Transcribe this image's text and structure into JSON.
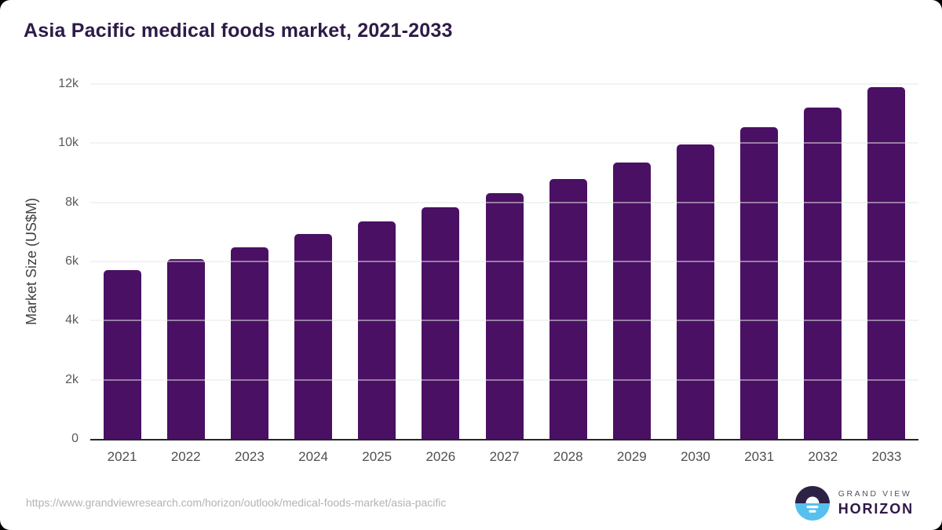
{
  "title": "Asia Pacific medical foods market, 2021-2033",
  "colors": {
    "bar": "#4a1063",
    "title": "#2e1a47",
    "gridline": "#e7e7e7",
    "axis_line": "#262626",
    "tick_label": "#5a5a5a",
    "logo_dark": "#2d2145",
    "logo_blue": "#56c0ef"
  },
  "chart_data": {
    "type": "bar",
    "title": "Asia Pacific medical foods market, 2021-2033",
    "categories": [
      "2021",
      "2022",
      "2023",
      "2024",
      "2025",
      "2026",
      "2027",
      "2028",
      "2029",
      "2030",
      "2031",
      "2032",
      "2033"
    ],
    "values": [
      5700,
      6080,
      6480,
      6920,
      7350,
      7830,
      8300,
      8800,
      9350,
      9950,
      10550,
      11200,
      11900
    ],
    "xlabel": "",
    "ylabel": "Market Size (US$M)",
    "ylim": [
      0,
      12000
    ],
    "yticks": [
      {
        "value": 0,
        "label": "0"
      },
      {
        "value": 2000,
        "label": "2k"
      },
      {
        "value": 4000,
        "label": "4k"
      },
      {
        "value": 6000,
        "label": "6k"
      },
      {
        "value": 8000,
        "label": "8k"
      },
      {
        "value": 10000,
        "label": "10k"
      },
      {
        "value": 12000,
        "label": "12k"
      }
    ],
    "grid": "horizontal",
    "legend": "none"
  },
  "footer": {
    "url": "https://www.grandviewresearch.com/horizon/outlook/medical-foods-market/asia-pacific",
    "logo": {
      "line1": "GRAND VIEW",
      "line2": "HORIZON"
    }
  }
}
